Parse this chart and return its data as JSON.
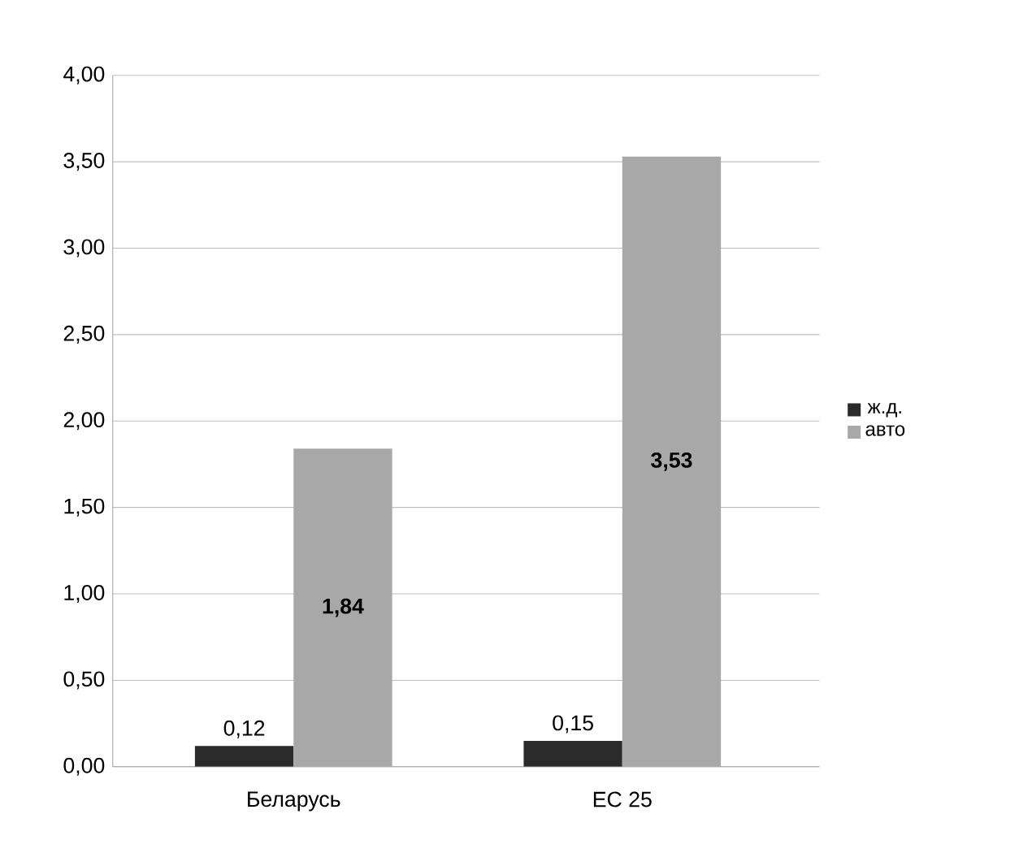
{
  "chart_data": {
    "type": "bar",
    "categories": [
      "Беларусь",
      "ЕС 25"
    ],
    "series": [
      {
        "name": "ж.д.",
        "color": "#2b2b2b",
        "values": [
          0.12,
          0.15
        ],
        "value_labels": [
          "0,12",
          "0,15"
        ]
      },
      {
        "name": "авто",
        "color": "#a8a8a8",
        "values": [
          1.84,
          3.53
        ],
        "value_labels": [
          "1,84",
          "3,53"
        ]
      }
    ],
    "ylim": [
      0,
      4
    ],
    "yticks": [
      {
        "value": 0,
        "label": "0,00"
      },
      {
        "value": 0.5,
        "label": "0,50"
      },
      {
        "value": 1,
        "label": "1,00"
      },
      {
        "value": 1.5,
        "label": "1,50"
      },
      {
        "value": 2,
        "label": "2,00"
      },
      {
        "value": 2.5,
        "label": "2,50"
      },
      {
        "value": 3,
        "label": "3,00"
      },
      {
        "value": 3.5,
        "label": "3,50"
      },
      {
        "value": 4,
        "label": "4,00"
      }
    ],
    "grid": "y",
    "legend": "right"
  }
}
